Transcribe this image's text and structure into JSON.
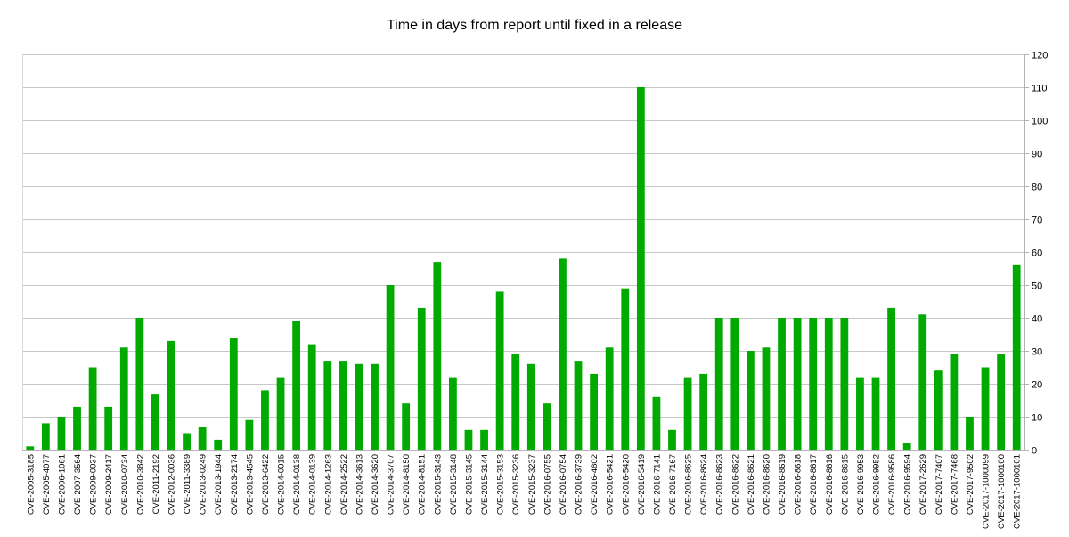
{
  "chart_data": {
    "type": "bar",
    "title": "Time in days from report until fixed in a release",
    "xlabel": "",
    "ylabel": "",
    "ylim": [
      0,
      120
    ],
    "yticks": [
      0,
      10,
      20,
      30,
      40,
      50,
      60,
      70,
      80,
      90,
      100,
      110,
      120
    ],
    "grid": true,
    "y_axis_side": "right",
    "bar_color": "#00aa00",
    "categories": [
      "CVE-2005-3185",
      "CVE-2005-4077",
      "CVE-2006-1061",
      "CVE-2007-3564",
      "CVE-2009-0037",
      "CVE-2009-2417",
      "CVE-2010-0734",
      "CVE-2010-3842",
      "CVE-2011-2192",
      "CVE-2012-0036",
      "CVE-2011-3389",
      "CVE-2013-0249",
      "CVE-2013-1944",
      "CVE-2013-2174",
      "CVE-2013-4545",
      "CVE-2013-6422",
      "CVE-2014-0015",
      "CVE-2014-0138",
      "CVE-2014-0139",
      "CVE-2014-1263",
      "CVE-2014-2522",
      "CVE-2014-3613",
      "CVE-2014-3620",
      "CVE-2014-3707",
      "CVE-2014-8150",
      "CVE-2014-8151",
      "CVE-2015-3143",
      "CVE-2015-3148",
      "CVE-2015-3145",
      "CVE-2015-3144",
      "CVE-2015-3153",
      "CVE-2015-3236",
      "CVE-2015-3237",
      "CVE-2016-0755",
      "CVE-2016-0754",
      "CVE-2016-3739",
      "CVE-2016-4802",
      "CVE-2016-5421",
      "CVE-2016-5420",
      "CVE-2016-5419",
      "CVE-2016-7141",
      "CVE-2016-7167",
      "CVE-2016-8625",
      "CVE-2016-8624",
      "CVE-2016-8623",
      "CVE-2016-8622",
      "CVE-2016-8621",
      "CVE-2016-8620",
      "CVE-2016-8619",
      "CVE-2016-8618",
      "CVE-2016-8617",
      "CVE-2016-8616",
      "CVE-2016-8615",
      "CVE-2016-9953",
      "CVE-2016-9952",
      "CVE-2016-9586",
      "CVE-2016-9594",
      "CVE-2017-2629",
      "CVE-2017-7407",
      "CVE-2017-7468",
      "CVE-2017-9502",
      "CVE-2017-1000099",
      "CVE-2017-1000100",
      "CVE-2017-1000101"
    ],
    "values": [
      1,
      8,
      10,
      13,
      25,
      13,
      31,
      40,
      17,
      33,
      5,
      7,
      3,
      34,
      9,
      18,
      22,
      39,
      32,
      27,
      27,
      26,
      26,
      50,
      14,
      43,
      57,
      22,
      6,
      6,
      48,
      29,
      26,
      14,
      58,
      27,
      23,
      31,
      49,
      110,
      16,
      6,
      22,
      23,
      40,
      40,
      30,
      31,
      40,
      40,
      40,
      40,
      40,
      22,
      22,
      43,
      2,
      41,
      24,
      29,
      10,
      25,
      29,
      56
    ]
  }
}
